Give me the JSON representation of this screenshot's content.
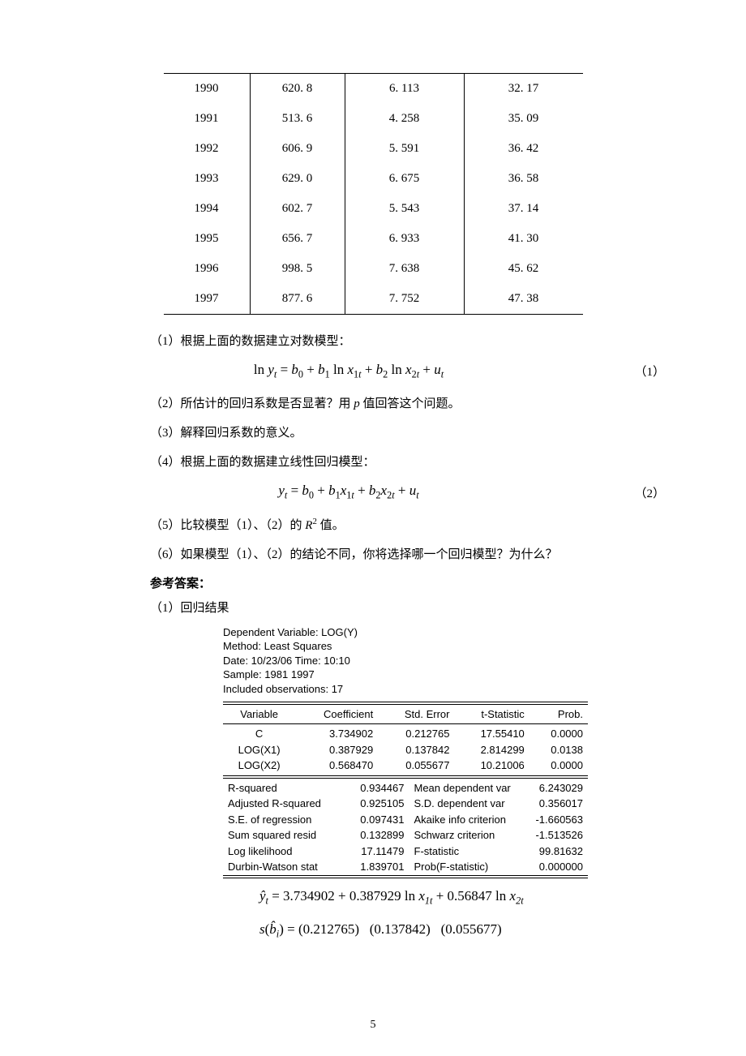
{
  "data_table": {
    "rows": [
      [
        "1990",
        "620. 8",
        "6. 113",
        "32. 17"
      ],
      [
        "1991",
        "513. 6",
        "4. 258",
        "35. 09"
      ],
      [
        "1992",
        "606. 9",
        "5. 591",
        "36. 42"
      ],
      [
        "1993",
        "629. 0",
        "6. 675",
        "36. 58"
      ],
      [
        "1994",
        "602. 7",
        "5. 543",
        "37. 14"
      ],
      [
        "1995",
        "656. 7",
        "6. 933",
        "41. 30"
      ],
      [
        "1996",
        "998. 5",
        "7. 638",
        "45. 62"
      ],
      [
        "1997",
        "877. 6",
        "7. 752",
        "47. 38"
      ]
    ]
  },
  "lines": {
    "q1": "（1）根据上面的数据建立对数模型：",
    "q2": "（2）所估计的回归系数是否显著？用 p 值回答这个问题。",
    "q3": "（3）解释回归系数的意义。",
    "q4": "（4）根据上面的数据建立线性回归模型：",
    "q5": "（5）比较模型（1）、（2）的 R² 值。",
    "q6": "（6）如果模型（1）、（2）的结论不同，你将选择哪一个回归模型？为什么？",
    "ans_label": "参考答案：",
    "ans1": "（1）回归结果"
  },
  "eq1": {
    "text": "ln y_t = b_0 + b_1 ln x_{1t} + b_2 ln x_{2t} + u_t",
    "num": "（1）"
  },
  "eq2": {
    "text": "y_t = b_0 + b_1 x_{1t} + b_2 x_{2t} + u_t",
    "num": "（2）"
  },
  "eviews": {
    "header": [
      "Dependent Variable: LOG(Y)",
      "Method: Least Squares",
      "Date: 10/23/06   Time: 10:10",
      "Sample: 1981 1997",
      "Included observations: 17"
    ],
    "cols": [
      "Variable",
      "Coefficient",
      "Std. Error",
      "t-Statistic",
      "Prob."
    ],
    "coef_rows": [
      [
        "C",
        "3.734902",
        "0.212765",
        "17.55410",
        "0.0000"
      ],
      [
        "LOG(X1)",
        "0.387929",
        "0.137842",
        "2.814299",
        "0.0138"
      ],
      [
        "LOG(X2)",
        "0.568470",
        "0.055677",
        "10.21006",
        "0.0000"
      ]
    ],
    "stats": [
      [
        "R-squared",
        "0.934467",
        "Mean dependent var",
        "6.243029"
      ],
      [
        "Adjusted R-squared",
        "0.925105",
        "S.D. dependent var",
        "0.356017"
      ],
      [
        "S.E. of regression",
        "0.097431",
        "Akaike info criterion",
        "-1.660563"
      ],
      [
        "Sum squared resid",
        "0.132899",
        "Schwarz criterion",
        "-1.513526"
      ],
      [
        "Log likelihood",
        "17.11479",
        "F-statistic",
        "99.81632"
      ],
      [
        "Durbin-Watson stat",
        "1.839701",
        "Prob(F-statistic)",
        "0.000000"
      ]
    ]
  },
  "result_eq": {
    "yhat": "ŷ_t = 3.734902 + 0.387929 ln x_{1t} + 0.56847 ln x_{2t}",
    "se": "s(b̂_i) = (0.212765)   (0.137842)   (0.055677)"
  },
  "page_number": "5"
}
